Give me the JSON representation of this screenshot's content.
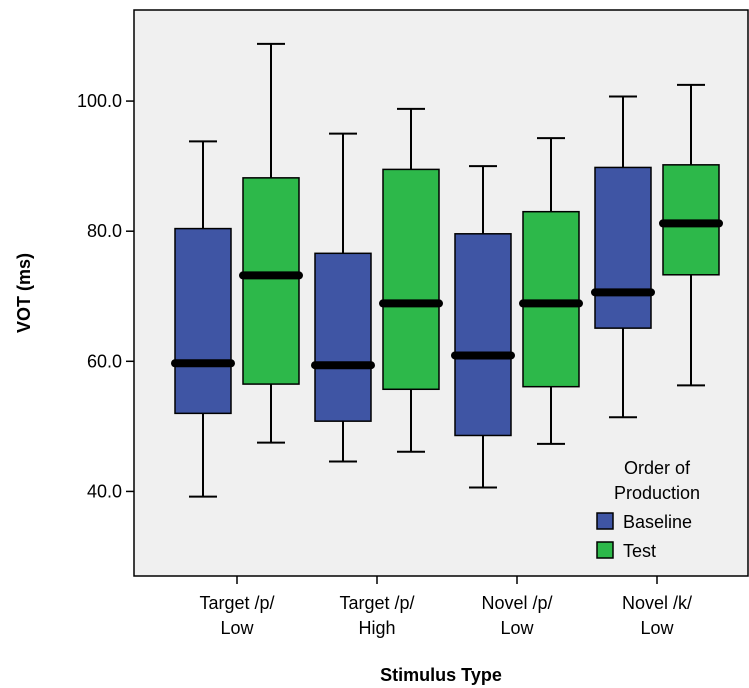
{
  "chart_data": {
    "type": "boxplot",
    "xlabel": "Stimulus Type",
    "ylabel": "VOT (ms)",
    "ylim": [
      27,
      114
    ],
    "y_ticks": [
      "40.0",
      "60.0",
      "80.0",
      "100.0"
    ],
    "y_tick_values": [
      40,
      60,
      80,
      100
    ],
    "grid": false,
    "categories": [
      {
        "line1": "Target /p/",
        "line2": "Low"
      },
      {
        "line1": "Target /p/",
        "line2": "High"
      },
      {
        "line1": "Novel /p/",
        "line2": "Low"
      },
      {
        "line1": "Novel /k/",
        "line2": "Low"
      }
    ],
    "series": [
      {
        "name": "Baseline",
        "color": "#3f55a4",
        "boxes": [
          {
            "min": 39.2,
            "q1": 52.0,
            "median": 59.7,
            "q3": 80.4,
            "max": 93.8
          },
          {
            "min": 44.6,
            "q1": 50.8,
            "median": 59.4,
            "q3": 76.6,
            "max": 95.0
          },
          {
            "min": 40.6,
            "q1": 48.6,
            "median": 60.9,
            "q3": 79.6,
            "max": 90.0
          },
          {
            "min": 51.4,
            "q1": 65.1,
            "median": 70.6,
            "q3": 89.8,
            "max": 100.7
          }
        ]
      },
      {
        "name": "Test",
        "color": "#2db84a",
        "boxes": [
          {
            "min": 47.5,
            "q1": 56.5,
            "median": 73.2,
            "q3": 88.2,
            "max": 108.8
          },
          {
            "min": 46.1,
            "q1": 55.7,
            "median": 68.9,
            "q3": 89.5,
            "max": 98.8
          },
          {
            "min": 47.3,
            "q1": 56.1,
            "median": 68.9,
            "q3": 83.0,
            "max": 94.3
          },
          {
            "min": 56.3,
            "q1": 73.3,
            "median": 81.2,
            "q3": 90.2,
            "max": 102.5
          }
        ]
      }
    ],
    "legend": {
      "title_line1": "Order of",
      "title_line2": "Production",
      "placement": "bottom-right"
    },
    "plot_background": "#f0f0f0"
  }
}
